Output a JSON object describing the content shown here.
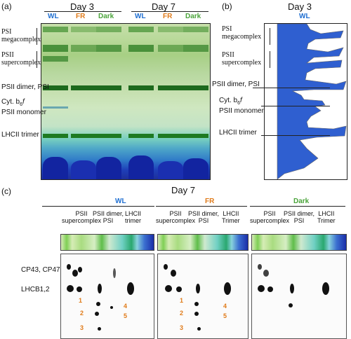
{
  "panels": {
    "a": "(a)",
    "b": "(b)",
    "c": "(c)"
  },
  "panel_a": {
    "days": [
      "Day 3",
      "Day 7"
    ],
    "lanes": [
      "WL",
      "FR",
      "Dark",
      "WL",
      "FR",
      "Dark"
    ],
    "band_labels": {
      "psi_mega_1": "PSI",
      "psi_mega_2": "megacomplex",
      "psii_super_1": "PSII",
      "psii_super_2": "supercomplex",
      "dimer": "PSII dimer, PSI",
      "cyt_1": "Cyt. b",
      "cyt_sub": "6",
      "cyt_f": "f",
      "cyt_2": "PSII monomer",
      "lhcii": "LHCII trimer"
    }
  },
  "panel_b": {
    "title": "Day 3",
    "legend": "WL",
    "band_labels": {
      "psi_mega_1": "PSI",
      "psi_mega_2": "megacomplex",
      "psii_super_1": "PSII",
      "psii_super_2": "supercomplex",
      "dimer": "PSII dimer, PSI",
      "cyt_1": "Cyt. b",
      "cyt_sub": "6",
      "cyt_f": "f",
      "cyt_2": "PSII monomer",
      "lhcii": "LHCII trimer"
    }
  },
  "panel_c": {
    "title": "Day 7",
    "groups": [
      {
        "name": "WL",
        "color": "#1f6fd1"
      },
      {
        "name": "FR",
        "color": "#e07b1a"
      },
      {
        "name": "Dark",
        "color": "#4aa33a"
      }
    ],
    "strip_labels": {
      "psii": "PSII",
      "supercomplex": "supercomplex",
      "dimer": "PSII dimer,",
      "psi": "PSI",
      "lhcii": "LHCII",
      "trimer_wl": "trimer",
      "trimer": "Trimer"
    },
    "row_labels": [
      "CP43, CP47",
      "LHCB1,2"
    ],
    "spot_numbers": [
      "1",
      "2",
      "3",
      "4",
      "5"
    ]
  },
  "colors": {
    "wl": "#1f6fd1",
    "fr": "#e07b1a",
    "dark": "#4aa33a",
    "profile_fill": "#2f5fd0"
  }
}
